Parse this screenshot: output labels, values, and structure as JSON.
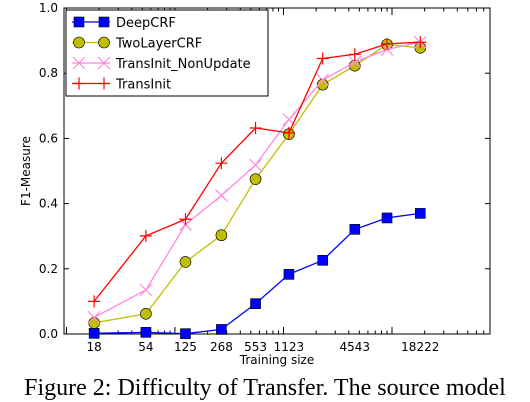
{
  "chart_data": {
    "type": "line",
    "title": "",
    "xlabel": "Training size",
    "ylabel": "F1-Measure",
    "ylim": [
      0,
      1.0
    ],
    "yticks": [
      "0.0",
      "0.2",
      "0.4",
      "0.6",
      "0.8",
      "1.0"
    ],
    "x_ticks": [
      "18",
      "54",
      "125",
      "268",
      "553",
      "1123",
      "4543",
      "18222"
    ],
    "x": [
      18,
      54,
      125,
      268,
      553,
      1123,
      2300,
      4543,
      9000,
      18222
    ],
    "grid": false,
    "legend_position": "top-left",
    "series": [
      {
        "name": "DeepCRF",
        "color": "#0000ff",
        "marker": "square",
        "marker_fill": "#0000ff",
        "values": [
          0.002,
          0.005,
          0.001,
          0.014,
          0.093,
          0.183,
          0.226,
          0.321,
          0.356,
          0.37
        ]
      },
      {
        "name": "TwoLayerCRF",
        "color": "#bfbf00",
        "marker": "circle",
        "marker_fill": "#bfbf00",
        "values": [
          0.034,
          0.062,
          0.221,
          0.303,
          0.475,
          0.613,
          0.765,
          0.823,
          0.888,
          0.878
        ]
      },
      {
        "name": "TransInit_NonUpdate",
        "color": "#ff88dd",
        "marker": "x",
        "marker_fill": "none",
        "values": [
          0.051,
          0.135,
          0.336,
          0.425,
          0.518,
          0.658,
          0.779,
          0.834,
          0.873,
          0.895
        ]
      },
      {
        "name": "TransInit",
        "color": "#ff0000",
        "marker": "plus",
        "marker_fill": "none",
        "values": [
          0.1,
          0.301,
          0.352,
          0.524,
          0.632,
          0.617,
          0.845,
          0.858,
          0.89,
          0.895
        ]
      }
    ]
  },
  "caption": "Figure 2: Difficulty of Transfer. The source model"
}
